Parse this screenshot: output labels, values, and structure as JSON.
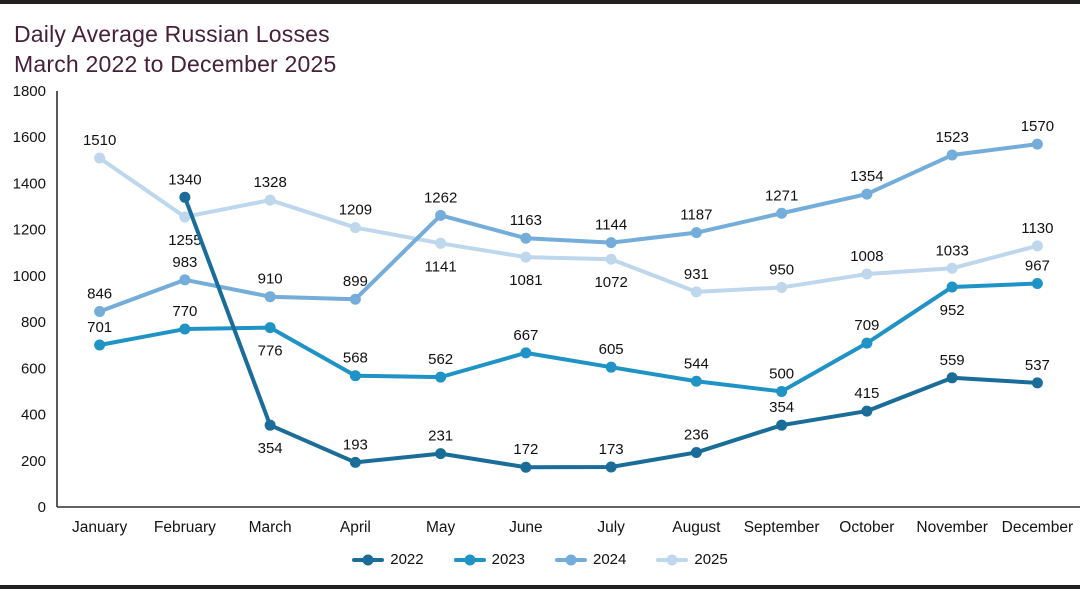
{
  "page": {
    "background_color": "#ffffff",
    "edge_bar_color": "#211f1f"
  },
  "title": {
    "line1": "Daily Average Russian Losses",
    "line2": "March 2022 to December 2025",
    "color": "#46203a"
  },
  "chart_data": {
    "type": "line",
    "title": "Daily Average Russian Losses March 2022 to December 2025",
    "xlabel": "",
    "ylabel": "",
    "categories": [
      "January",
      "February",
      "March",
      "April",
      "May",
      "June",
      "July",
      "August",
      "September",
      "October",
      "November",
      "December"
    ],
    "series": [
      {
        "name": "2022",
        "color": "#1a6c99",
        "values": [
          null,
          1340,
          354,
          193,
          231,
          172,
          173,
          236,
          354,
          415,
          559,
          537
        ],
        "label_below_indexes": [
          2
        ]
      },
      {
        "name": "2023",
        "color": "#1f93c5",
        "values": [
          701,
          770,
          776,
          568,
          562,
          667,
          605,
          544,
          500,
          709,
          952,
          967
        ],
        "label_below_indexes": [
          2,
          10
        ]
      },
      {
        "name": "2024",
        "color": "#74add9",
        "values": [
          846,
          983,
          910,
          899,
          1262,
          1163,
          1144,
          1187,
          1271,
          1354,
          1523,
          1570
        ],
        "label_below_indexes": []
      },
      {
        "name": "2025",
        "color": "#bed7ec",
        "values": [
          1510,
          1255,
          1328,
          1209,
          1141,
          1081,
          1072,
          931,
          950,
          1008,
          1033,
          1130
        ],
        "label_below_indexes": [
          1,
          4,
          5,
          6
        ]
      }
    ],
    "ylim": [
      0,
      1800
    ],
    "y_tick_step": 200,
    "grid": false,
    "data_labels": true,
    "legend_position": "bottom-center",
    "axis_color": "#303030",
    "tick_label_color": "#141414",
    "data_label_color": "#111111"
  }
}
